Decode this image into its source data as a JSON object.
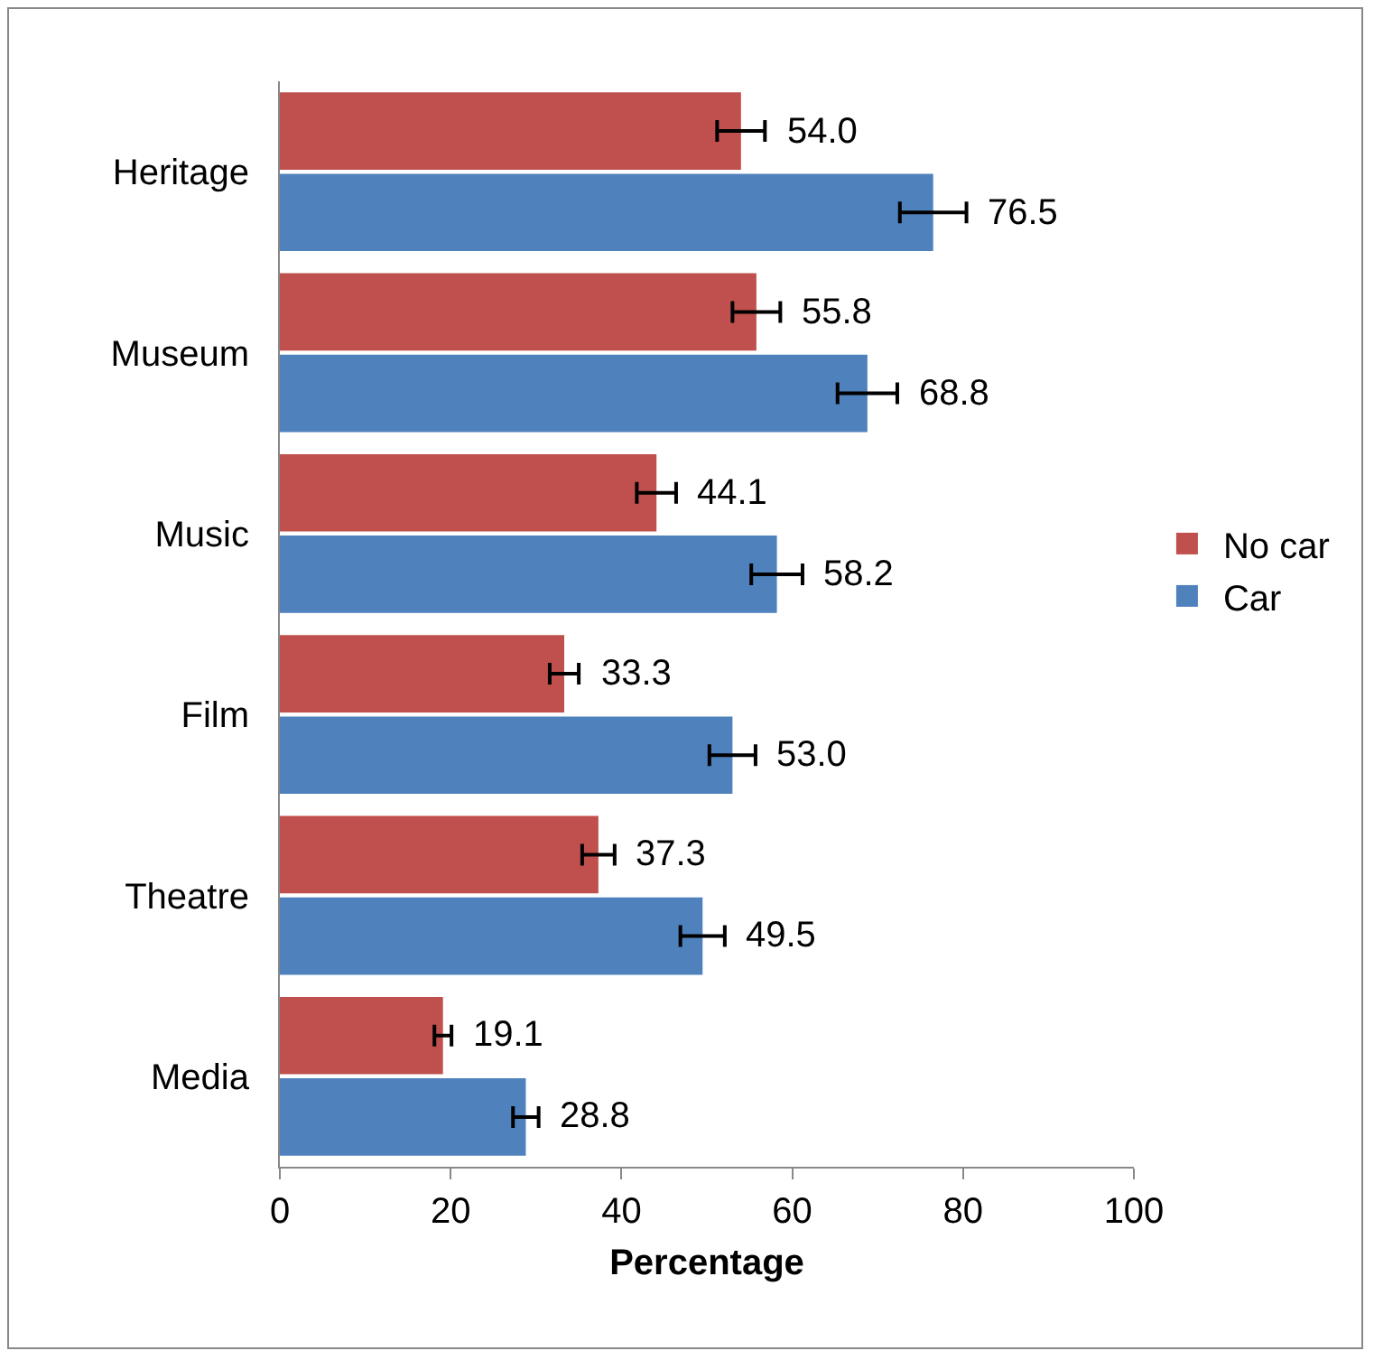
{
  "chart_data": {
    "type": "bar",
    "orientation": "horizontal",
    "xlabel": "Percentage",
    "categories": [
      "Heritage",
      "Museum",
      "Music",
      "Film",
      "Theatre",
      "Media"
    ],
    "series": [
      {
        "name": "No car",
        "color": "#c0504d",
        "values": [
          54.0,
          55.8,
          44.1,
          33.3,
          37.3,
          19.1
        ],
        "errors": [
          2.8,
          2.8,
          2.3,
          1.7,
          1.9,
          1.0
        ],
        "value_labels": [
          "54.0",
          "55.8",
          "44.1",
          "33.3",
          "37.3",
          "19.1"
        ]
      },
      {
        "name": "Car",
        "color": "#4f81bd",
        "values": [
          76.5,
          68.8,
          58.2,
          53.0,
          49.5,
          28.8
        ],
        "errors": [
          3.9,
          3.5,
          3.0,
          2.7,
          2.6,
          1.5
        ],
        "value_labels": [
          "76.5",
          "68.8",
          "58.2",
          "53.0",
          "49.5",
          "28.8"
        ]
      }
    ],
    "xlim": [
      0,
      100
    ],
    "xticks": [
      0,
      20,
      40,
      60,
      80,
      100
    ],
    "grid": false,
    "legend": "right"
  }
}
